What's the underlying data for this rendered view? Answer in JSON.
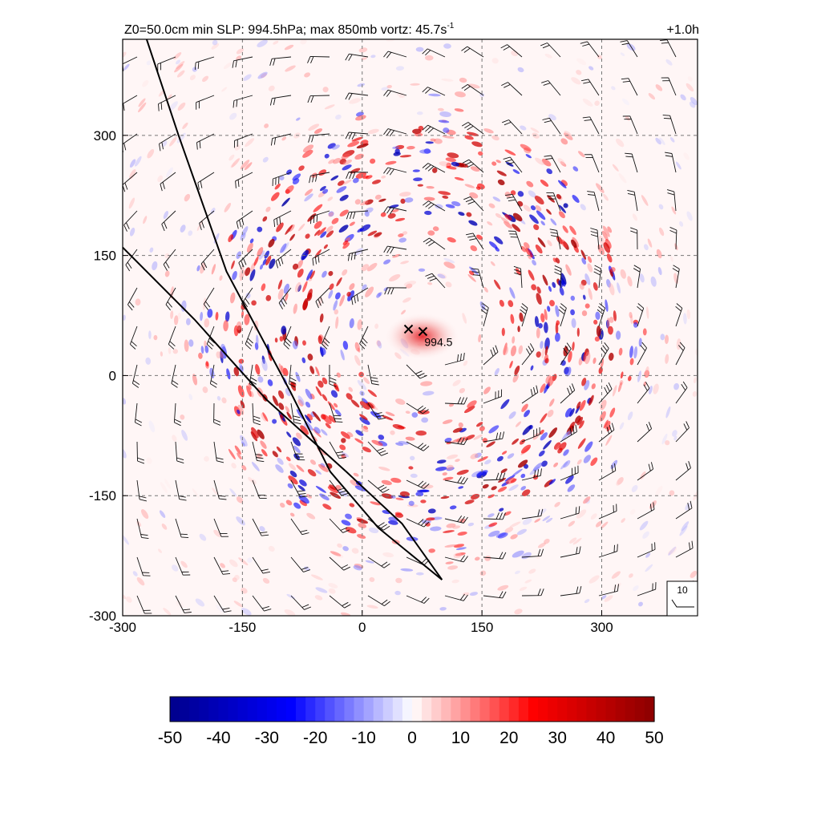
{
  "header": {
    "title_prefix": "Z0=50.0cm  min SLP: 994.5hPa; max 850mb vortz:  45.7s",
    "title_exponent": "-1",
    "time_label": "+1.0h"
  },
  "chart_data": {
    "type": "heatmap",
    "title": "Z0=50.0cm  min SLP: 994.5hPa; max 850mb vortz:  45.7s-1",
    "xlim": [
      -300,
      420
    ],
    "ylim": [
      -300,
      420
    ],
    "x_ticks": [
      -300,
      -150,
      0,
      150,
      300
    ],
    "y_ticks": [
      -300,
      -150,
      0,
      150,
      300
    ],
    "x_tick_labels": [
      "-300",
      "-150",
      "0",
      "150",
      "300"
    ],
    "y_tick_labels": [
      "-300",
      "-150",
      "0",
      "150",
      "300"
    ],
    "grid": true,
    "field": "850mb vorticity",
    "colorbar": {
      "min": -50,
      "max": 50,
      "ticks": [
        -50,
        -40,
        -30,
        -20,
        -10,
        0,
        10,
        20,
        30,
        40,
        50
      ],
      "tick_labels": [
        "-50",
        "-40",
        "-30",
        "-20",
        "-10",
        "0",
        "10",
        "20",
        "30",
        "40",
        "50"
      ],
      "colors": [
        "#00008b",
        "#0000ff",
        "#ffffff",
        "#ff0000",
        "#8b0000"
      ]
    },
    "storm_center": [
      75,
      55
    ],
    "min_slp_label": "994.5",
    "center_markers": [
      [
        58,
        58
      ],
      [
        76,
        55
      ]
    ],
    "wind_barb_reference": {
      "label": "10",
      "position": "bottom-right"
    },
    "track_lines": [
      {
        "points": [
          [
            -270,
            420
          ],
          [
            -230,
            300
          ],
          [
            -170,
            130
          ],
          [
            -90,
            -20
          ],
          [
            -40,
            -120
          ],
          [
            20,
            -190
          ],
          [
            100,
            -255
          ]
        ]
      },
      {
        "points": [
          [
            -300,
            160
          ],
          [
            -210,
            70
          ],
          [
            -120,
            -30
          ],
          [
            -20,
            -120
          ],
          [
            50,
            -185
          ],
          [
            100,
            -255
          ]
        ]
      }
    ]
  }
}
